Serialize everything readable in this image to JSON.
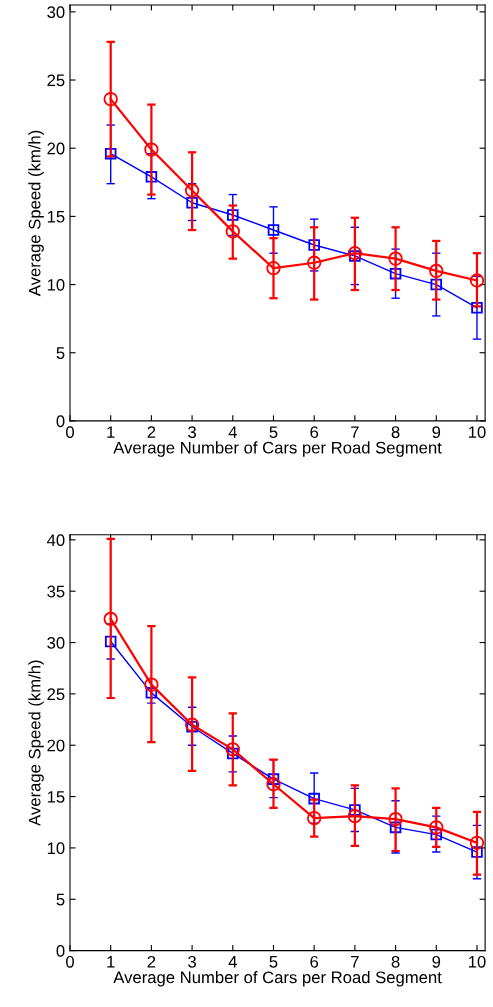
{
  "chart_data": [
    {
      "type": "line",
      "xlabel": "Average Number of Cars per Road Segment",
      "ylabel": "Average Speed (km/h)",
      "x": [
        1,
        2,
        3,
        4,
        5,
        6,
        7,
        8,
        9,
        10
      ],
      "xlim": [
        0,
        10.2
      ],
      "xticks": [
        0,
        1,
        2,
        3,
        4,
        5,
        6,
        7,
        8,
        9,
        10
      ],
      "ylim": [
        0,
        30.5
      ],
      "yticks": [
        0,
        5,
        10,
        15,
        20,
        25,
        30
      ],
      "grid": false,
      "legend": false,
      "series": [
        {
          "color": "#0000ff",
          "marker": "square",
          "values": [
            19.6,
            17.9,
            16.0,
            15.1,
            14.0,
            12.9,
            12.1,
            10.8,
            10.0,
            8.3
          ],
          "errors": [
            [
              17.4,
              21.7
            ],
            [
              16.3,
              19.6
            ],
            [
              14.7,
              17.4
            ],
            [
              13.6,
              16.6
            ],
            [
              12.3,
              15.7
            ],
            [
              11.0,
              14.8
            ],
            [
              10.0,
              14.2
            ],
            [
              9.0,
              12.6
            ],
            [
              7.7,
              12.3
            ],
            [
              6.0,
              10.6
            ]
          ]
        },
        {
          "color": "#ff0000",
          "marker": "circle",
          "values": [
            23.6,
            19.9,
            16.9,
            13.9,
            11.2,
            11.6,
            12.3,
            11.9,
            11.0,
            10.3
          ],
          "errors": [
            [
              19.4,
              27.8
            ],
            [
              16.6,
              23.2
            ],
            [
              14.0,
              19.7
            ],
            [
              11.9,
              15.8
            ],
            [
              9.0,
              13.4
            ],
            [
              8.9,
              14.2
            ],
            [
              9.6,
              14.9
            ],
            [
              9.6,
              14.2
            ],
            [
              8.9,
              13.2
            ],
            [
              8.4,
              12.3
            ]
          ]
        }
      ]
    },
    {
      "type": "line",
      "xlabel": "Average Number of Cars per Road Segment",
      "ylabel": "Average Speed (km/h)",
      "x": [
        1,
        2,
        3,
        4,
        5,
        6,
        7,
        8,
        9,
        10
      ],
      "xlim": [
        0,
        10.2
      ],
      "xticks": [
        0,
        1,
        2,
        3,
        4,
        5,
        6,
        7,
        8,
        9,
        10
      ],
      "ylim": [
        0,
        40.5
      ],
      "yticks": [
        0,
        5,
        10,
        15,
        20,
        25,
        30,
        35,
        40
      ],
      "grid": false,
      "legend": false,
      "series": [
        {
          "color": "#0000ff",
          "marker": "square",
          "values": [
            30.1,
            25.1,
            21.8,
            19.2,
            16.7,
            14.8,
            13.7,
            12.0,
            11.3,
            9.6
          ],
          "errors": [
            [
              28.4,
              31.8
            ],
            [
              24.1,
              25.6
            ],
            [
              20.0,
              23.7
            ],
            [
              17.4,
              20.9
            ],
            [
              14.9,
              18.6
            ],
            [
              12.4,
              17.3
            ],
            [
              11.6,
              15.8
            ],
            [
              9.5,
              14.6
            ],
            [
              9.6,
              13.1
            ],
            [
              7.0,
              12.2
            ]
          ]
        },
        {
          "color": "#ff0000",
          "marker": "circle",
          "values": [
            32.3,
            25.9,
            22.0,
            19.6,
            16.2,
            12.9,
            13.1,
            12.8,
            12.0,
            10.5
          ],
          "errors": [
            [
              24.6,
              40.1
            ],
            [
              20.3,
              31.6
            ],
            [
              17.5,
              26.6
            ],
            [
              16.1,
              23.1
            ],
            [
              13.9,
              18.6
            ],
            [
              11.1,
              14.7
            ],
            [
              10.2,
              16.1
            ],
            [
              9.7,
              15.8
            ],
            [
              10.1,
              13.9
            ],
            [
              7.4,
              13.5
            ]
          ]
        }
      ]
    }
  ]
}
